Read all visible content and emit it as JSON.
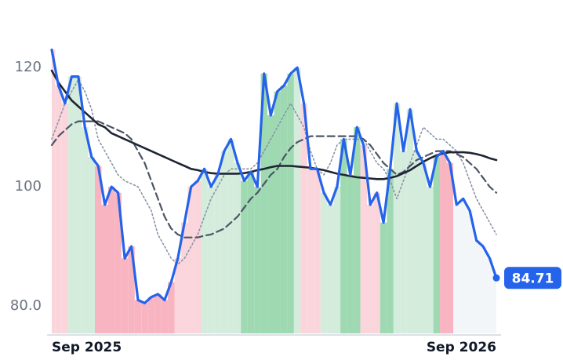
{
  "chart_data": {
    "type": "line",
    "categories": [
      "Sep 2025",
      null,
      null,
      null,
      null,
      null,
      null,
      null,
      null,
      null,
      null,
      null,
      null,
      null,
      null,
      null,
      null,
      null,
      null,
      null,
      null,
      null,
      null,
      null,
      null,
      null,
      null,
      null,
      null,
      null,
      null,
      null,
      null,
      null,
      null,
      null,
      null,
      null,
      null,
      null,
      null,
      null,
      null,
      null,
      null,
      null,
      null,
      null,
      null,
      null,
      null,
      null,
      null,
      null,
      null,
      null,
      null,
      null,
      null,
      null,
      null,
      null,
      null,
      null,
      null,
      null,
      null,
      "Sep 2026"
    ],
    "ylim": [
      75.4,
      127.4
    ],
    "yticks": [
      {
        "value": 80,
        "label": "80.0"
      },
      100,
      120
    ],
    "band_colors": [
      "#fbd5dc",
      "#fbd5dc",
      "#fbd5dc",
      "#d3ecdc",
      "#d3ecdc",
      "#d3ecdc",
      "#d3ecdc",
      "#f8b4c1",
      "#f8b4c1",
      "#f8b4c1",
      "#f8b4c1",
      "#f8b4c1",
      "#f8b4c1",
      "#f8b4c1",
      "#f8b4c1",
      "#f8b4c1",
      "#f8b4c1",
      "#f8b4c1",
      "#f8b4c1",
      "#fbd5dc",
      "#fbd5dc",
      "#fbd5dc",
      "#fbd5dc",
      "#d3ecdc",
      "#d3ecdc",
      "#d3ecdc",
      "#d3ecdc",
      "#d3ecdc",
      "#d3ecdc",
      "#9fd9b2",
      "#9fd9b2",
      "#9fd9b2",
      "#9fd9b2",
      "#9fd9b2",
      "#9fd9b2",
      "#9fd9b2",
      "#9fd9b2",
      "#d3ecdc",
      "#fbd5dc",
      "#fbd5dc",
      "#fbd5dc",
      "#d3ecdc",
      "#d3ecdc",
      "#d3ecdc",
      "#9fd9b2",
      "#9fd9b2",
      "#9fd9b2",
      "#fbd5dc",
      "#fbd5dc",
      "#fbd5dc",
      "#9fd9b2",
      "#9fd9b2",
      "#d3ecdc",
      "#d3ecdc",
      "#d3ecdc",
      "#d3ecdc",
      "#d3ecdc",
      "#d3ecdc",
      "#9fd9b2",
      "#f8b4c1",
      "#f8b4c1",
      "#f3f6f9",
      "#f3f6f9",
      "#f3f6f9",
      "#f3f6f9",
      "#f3f6f9",
      "#f3f6f9",
      "#f3f6f9"
    ],
    "series": [
      {
        "color": "#8a94a6",
        "dash": "dotted",
        "width": 1.6,
        "values": [
          108,
          111,
          114,
          116,
          118,
          116,
          113,
          108,
          106,
          104,
          102,
          101,
          100.5,
          100,
          98,
          96,
          92,
          90,
          88,
          87,
          88,
          90,
          92,
          95,
          98,
          100,
          102,
          103,
          103,
          103,
          103,
          104,
          106,
          108,
          110,
          112,
          114,
          112,
          110,
          106,
          103,
          102,
          104,
          107,
          108,
          108,
          108,
          108,
          106,
          104,
          103,
          101,
          98,
          101,
          104,
          107,
          110,
          109,
          108,
          108,
          107,
          106,
          104,
          101,
          98,
          96,
          94,
          92
        ]
      },
      {
        "color": "#4b5565",
        "dash": "dashed",
        "width": 2.2,
        "values": [
          107,
          108.5,
          109.5,
          110.5,
          111,
          111,
          111,
          111,
          110.5,
          110,
          109.5,
          109,
          108,
          106,
          104,
          101,
          98,
          95,
          93,
          92,
          91.5,
          91.5,
          91.5,
          91.8,
          92,
          92.5,
          93,
          94,
          95,
          96.5,
          98,
          99,
          100.5,
          102,
          103,
          105,
          106.5,
          107.5,
          108,
          108.5,
          108.5,
          108.5,
          108.5,
          108.5,
          108.5,
          108.5,
          108.5,
          108,
          107,
          105.5,
          104,
          103,
          102,
          102.5,
          103.5,
          104.5,
          105,
          105.5,
          106,
          106,
          106,
          105.5,
          105,
          104,
          103,
          101.5,
          100,
          99
        ]
      },
      {
        "color": "#1e2533",
        "dash": "solid",
        "width": 2.6,
        "values": [
          119.5,
          117.5,
          116,
          114.5,
          113.5,
          112.5,
          111.5,
          110.5,
          110,
          109,
          108.5,
          108,
          107.5,
          107,
          106.5,
          106,
          105.5,
          105,
          104.5,
          104,
          103.5,
          103,
          102.8,
          102.5,
          102.3,
          102.2,
          102.2,
          102.2,
          102.2,
          102.3,
          102.5,
          102.8,
          103,
          103.3,
          103.5,
          103.5,
          103.5,
          103.4,
          103.3,
          103.2,
          103,
          102.8,
          102.5,
          102.2,
          102,
          101.8,
          101.6,
          101.5,
          101.4,
          101.3,
          101.3,
          101.5,
          101.8,
          102.3,
          102.8,
          103.5,
          104.2,
          104.8,
          105.3,
          105.6,
          105.8,
          105.8,
          105.8,
          105.7,
          105.5,
          105.2,
          104.8,
          104.5
        ]
      },
      {
        "color": "#2563eb",
        "dash": "solid",
        "width": 3.2,
        "label_last": true,
        "values": [
          123,
          117,
          114,
          118.5,
          118.5,
          110,
          105,
          103.5,
          97,
          100,
          99,
          88,
          90,
          81,
          80.5,
          81.5,
          82,
          81,
          84,
          88,
          94,
          100,
          101,
          103,
          100,
          102,
          106,
          108,
          104,
          101,
          102.5,
          100,
          119,
          112,
          116,
          117,
          119,
          120,
          114,
          103,
          103,
          99,
          97,
          100,
          108,
          102,
          110,
          107,
          97,
          99,
          94,
          103,
          114,
          106,
          113,
          106,
          104,
          100,
          105,
          106,
          104,
          97,
          98,
          96,
          91,
          90,
          88,
          84.71
        ]
      }
    ]
  }
}
